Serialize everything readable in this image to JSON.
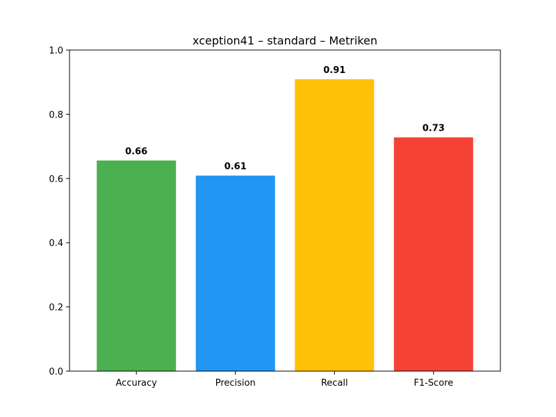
{
  "chart_data": {
    "type": "bar",
    "title": "xception41 – standard – Metriken",
    "xlabel": "",
    "ylabel": "",
    "categories": [
      "Accuracy",
      "Precision",
      "Recall",
      "F1-Score"
    ],
    "values": [
      0.656,
      0.609,
      0.909,
      0.728
    ],
    "data_labels": [
      "0.66",
      "0.61",
      "0.91",
      "0.73"
    ],
    "colors": [
      "#4caf50",
      "#2196f3",
      "#ffc107",
      "#f44336"
    ],
    "ylim": [
      0,
      1.0
    ],
    "yticks": [
      0.0,
      0.2,
      0.4,
      0.6,
      0.8,
      1.0
    ],
    "ytick_labels": [
      "0.0",
      "0.2",
      "0.4",
      "0.6",
      "0.8",
      "1.0"
    ],
    "grid": false,
    "legend": "none"
  }
}
